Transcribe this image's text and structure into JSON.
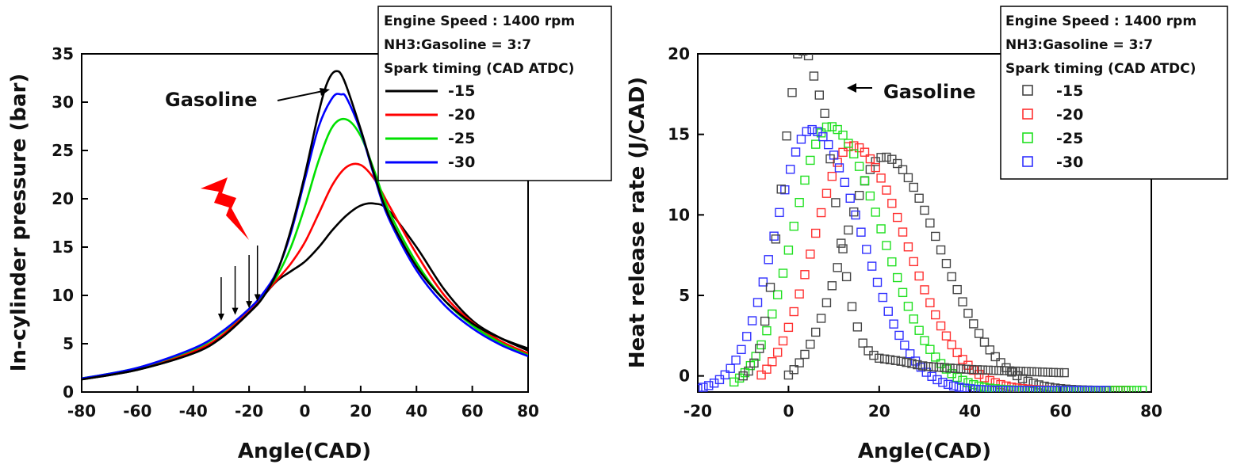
{
  "chart_data": [
    {
      "type": "line",
      "xlabel": "Angle(CAD)",
      "ylabel": "In-cylinder pressure (bar)",
      "xlim": [
        -80,
        80
      ],
      "ylim": [
        0,
        35
      ],
      "xticks": [
        "-80",
        "-60",
        "-40",
        "-20",
        "0",
        "20",
        "40",
        "60",
        "80"
      ],
      "yticks": [
        "0",
        "5",
        "10",
        "15",
        "20",
        "25",
        "30",
        "35"
      ],
      "grid": false,
      "legend_position": "top-right",
      "legend_lines": [
        "Engine Speed : 1400 rpm",
        "NH3:Gasoline = 3:7",
        "Spark timing (CAD ATDC)"
      ],
      "annotation": "Gasoline",
      "spark_arrows_x": [
        -30,
        -25,
        -20,
        -17
      ],
      "series": [
        {
          "name": "-15",
          "color": "#000000",
          "x": [
            -80,
            -60,
            -40,
            -30,
            -20,
            -15,
            -10,
            -5,
            0,
            5,
            10,
            15,
            20,
            25,
            30,
            40,
            50,
            60,
            70,
            80
          ],
          "y": [
            1.3,
            2.3,
            4.0,
            5.6,
            8.2,
            9.9,
            11.5,
            12.5,
            13.5,
            15.0,
            16.8,
            18.3,
            19.3,
            19.5,
            18.8,
            15.0,
            10.6,
            7.4,
            5.6,
            4.3
          ]
        },
        {
          "name": "-20",
          "color": "#ff0000",
          "x": [
            -80,
            -60,
            -40,
            -30,
            -20,
            -15,
            -10,
            -5,
            0,
            5,
            10,
            15,
            20,
            25,
            30,
            40,
            50,
            60,
            70,
            80
          ],
          "y": [
            1.4,
            2.4,
            4.2,
            5.8,
            8.5,
            10.0,
            11.6,
            13.3,
            15.5,
            18.5,
            21.5,
            23.3,
            23.5,
            22.0,
            19.4,
            14.3,
            10.0,
            7.2,
            5.3,
            4.0
          ]
        },
        {
          "name": "-25",
          "color": "#00e000",
          "x": [
            -80,
            -60,
            -40,
            -30,
            -20,
            -15,
            -10,
            -5,
            0,
            5,
            10,
            15,
            20,
            25,
            30,
            40,
            50,
            60,
            70,
            80
          ],
          "y": [
            1.4,
            2.5,
            4.4,
            6.1,
            8.6,
            10.1,
            12.0,
            15.0,
            19.2,
            24.0,
            27.5,
            28.2,
            26.5,
            22.8,
            18.8,
            13.4,
            9.5,
            6.9,
            5.1,
            3.8
          ]
        },
        {
          "name": "-30",
          "color": "#0000ff",
          "x": [
            -80,
            -60,
            -40,
            -30,
            -20,
            -15,
            -10,
            -5,
            0,
            5,
            10,
            13,
            15,
            20,
            25,
            30,
            40,
            50,
            60,
            70,
            80
          ],
          "y": [
            1.4,
            2.5,
            4.5,
            6.2,
            8.6,
            10.2,
            12.5,
            16.5,
            22.0,
            27.5,
            30.5,
            30.8,
            30.4,
            27.0,
            22.2,
            18.0,
            12.6,
            9.0,
            6.6,
            4.9,
            3.7
          ]
        },
        {
          "name": "Gasoline",
          "color": "#000000",
          "x": [
            -80,
            -60,
            -40,
            -30,
            -20,
            -15,
            -10,
            -5,
            0,
            5,
            8,
            11,
            14,
            20,
            25,
            30,
            40,
            50,
            60,
            70,
            80
          ],
          "y": [
            1.3,
            2.3,
            4.0,
            5.6,
            8.2,
            9.8,
            12.4,
            16.8,
            22.5,
            29.0,
            32.0,
            33.2,
            32.3,
            27.2,
            22.4,
            18.3,
            13.0,
            9.5,
            7.1,
            5.6,
            4.5
          ]
        }
      ]
    },
    {
      "type": "scatter",
      "xlabel": "Angle(CAD)",
      "ylabel": "Heat release rate (J/CAD)",
      "xlim": [
        -20,
        80
      ],
      "ylim": [
        -1,
        20
      ],
      "xticks": [
        "-20",
        "0",
        "20",
        "40",
        "60",
        "80"
      ],
      "yticks": [
        "0",
        "5",
        "10",
        "15",
        "20"
      ],
      "grid": false,
      "legend_position": "top-right",
      "legend_lines": [
        "Engine Speed : 1400 rpm",
        "NH3:Gasoline = 3:7",
        "Spark timing (CAD ATDC)"
      ],
      "annotation": "Gasoline",
      "series": [
        {
          "name": "-15",
          "color": "#444444",
          "peak_x": 21,
          "peak_y": 13.6,
          "sigma_left": 9.0,
          "sigma_right": 12.5,
          "x_start": 0,
          "x_end": 75
        },
        {
          "name": "-20",
          "color": "#ff3030",
          "peak_x": 14,
          "peak_y": 14.3,
          "sigma_left": 8.5,
          "sigma_right": 12.0,
          "x_start": -6,
          "x_end": 75
        },
        {
          "name": "-25",
          "color": "#20e020",
          "peak_x": 9,
          "peak_y": 15.5,
          "sigma_left": 8.0,
          "sigma_right": 11.5,
          "x_start": -12,
          "x_end": 78
        },
        {
          "name": "-30",
          "color": "#3030ff",
          "peak_x": 5,
          "peak_y": 15.3,
          "sigma_left": 8.0,
          "sigma_right": 11.0,
          "x_start": -20,
          "x_end": 70
        }
      ],
      "gasoline_curve": {
        "color": "#444444",
        "x": [
          -10,
          -8,
          -6,
          -4,
          -2,
          0,
          2,
          4,
          6,
          8,
          10,
          12,
          14,
          16,
          18,
          20,
          25,
          30,
          40,
          50,
          60
        ],
        "y": [
          0.0,
          0.5,
          2.0,
          5.5,
          10.5,
          16.0,
          20.0,
          20.3,
          18.2,
          16.3,
          11.6,
          7.4,
          4.3,
          2.2,
          1.4,
          1.1,
          0.9,
          0.6,
          0.4,
          0.3,
          0.2
        ]
      }
    }
  ]
}
